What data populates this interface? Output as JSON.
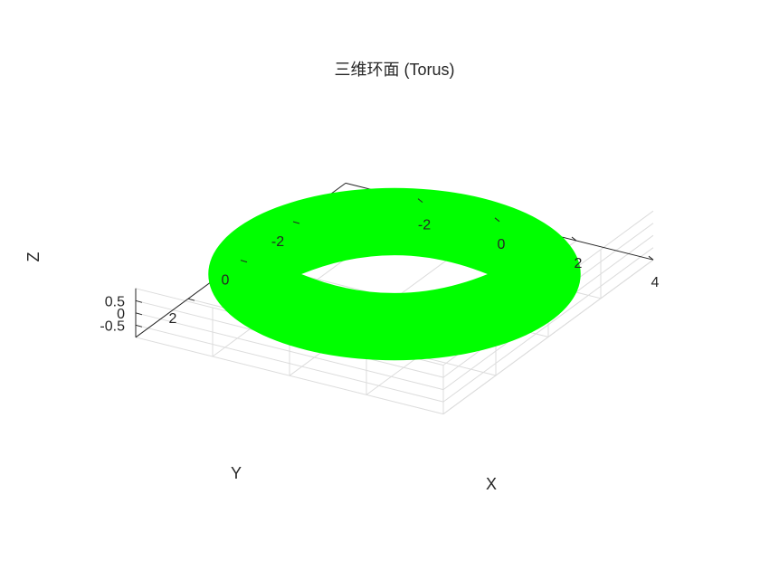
{
  "chart_data": {
    "type": "surface",
    "title": "三维环面 (Torus)",
    "xlabel": "X",
    "ylabel": "Y",
    "zlabel": "Z",
    "xlim": [
      -4,
      4
    ],
    "ylim": [
      -4,
      4
    ],
    "zlim": [
      -1,
      1
    ],
    "xticks": [
      -2,
      0,
      2,
      4
    ],
    "yticks": [
      -2,
      0,
      2
    ],
    "zticks": [
      -0.5,
      0,
      0.5
    ],
    "xtick_labels": [
      "-2",
      "0",
      "2",
      "4"
    ],
    "ytick_labels": [
      "-2",
      "0",
      "2"
    ],
    "ztick_labels": [
      "-0.5",
      "0",
      "0.5"
    ],
    "torus": {
      "major_radius": 3,
      "minor_radius": 1
    },
    "surface_color": "#00ff00",
    "grid": true,
    "view": "3d-isometric"
  }
}
